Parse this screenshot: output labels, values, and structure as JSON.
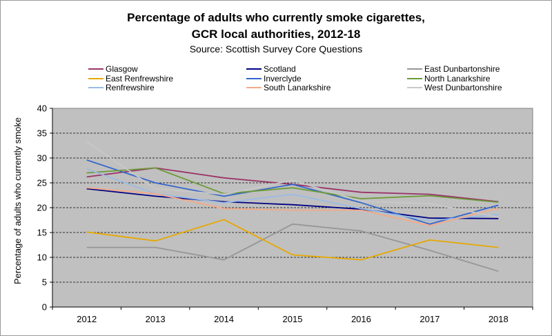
{
  "chart_data": {
    "type": "line",
    "title": "Percentage of adults who currently smoke cigarettes,",
    "title_line2": "GCR local authorities, 2012-18",
    "subtitle": "Source: Scottish Survey Core Questions",
    "xlabel": "",
    "ylabel": "Percentage of adults who currently smoke",
    "x": [
      "2012",
      "2013",
      "2014",
      "2015",
      "2016",
      "2017",
      "2018"
    ],
    "ylim": [
      0,
      40
    ],
    "yticks": [
      0,
      5,
      10,
      15,
      20,
      25,
      30,
      35,
      40
    ],
    "grid": true,
    "legend_position": "top",
    "series": [
      {
        "name": "Glasgow",
        "color": "#993366",
        "values": [
          26.2,
          28.0,
          26.0,
          24.7,
          23.1,
          22.7,
          21.2
        ]
      },
      {
        "name": "Scotland",
        "color": "#000080",
        "values": [
          23.8,
          22.3,
          21.2,
          20.6,
          19.7,
          17.9,
          17.8
        ]
      },
      {
        "name": "East Dunbartonshire",
        "color": "#969696",
        "values": [
          12.0,
          12.0,
          9.5,
          16.7,
          15.3,
          11.4,
          7.2
        ]
      },
      {
        "name": "East Renfrewshire",
        "color": "#E6A800",
        "values": [
          15.1,
          13.3,
          17.6,
          10.5,
          9.5,
          13.5,
          12.0
        ]
      },
      {
        "name": "Inverclyde",
        "color": "#3366CC",
        "values": [
          29.6,
          25.0,
          22.3,
          24.7,
          21.0,
          16.7,
          20.5
        ]
      },
      {
        "name": "North Lanarkshire",
        "color": "#6B9B37",
        "values": [
          27.0,
          28.0,
          22.8,
          24.0,
          21.8,
          22.4,
          21.1
        ]
      },
      {
        "name": "Renfrewshire",
        "color": "#99BBE6",
        "values": [
          27.8,
          22.8,
          21.0,
          22.7,
          19.8,
          17.4,
          18.6
        ]
      },
      {
        "name": "South Lanarkshire",
        "color": "#F4A988",
        "values": [
          24.0,
          22.8,
          19.8,
          19.5,
          19.5,
          16.4,
          19.9
        ]
      },
      {
        "name": "West Dunbartonshire",
        "color": "#C8C8C8",
        "values": [
          33.3,
          23.8,
          22.7,
          25.5,
          21.3,
          20.8,
          18.1
        ]
      }
    ]
  }
}
